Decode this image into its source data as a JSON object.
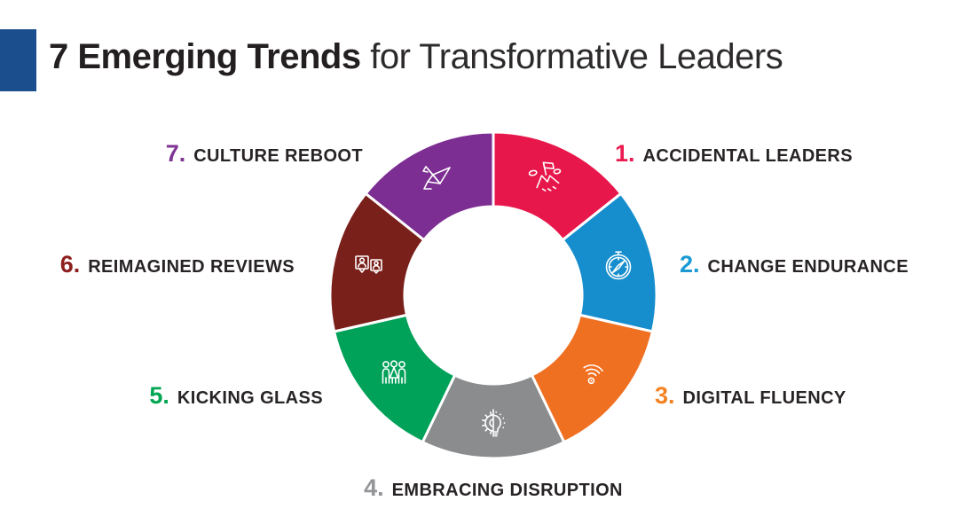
{
  "header": {
    "title_bold": "7 Emerging Trends",
    "title_light": " for Transformative Leaders",
    "accent_color": "#1b4e8c",
    "title_color": "#231f20"
  },
  "wheel": {
    "type": "donut",
    "equal_segments": true,
    "segment_count": 7,
    "center_empty": true,
    "segments": [
      {
        "number": "1.",
        "label": "ACCIDENTAL LEADERS",
        "color": "#e8174b",
        "number_color": "#ed1a4f",
        "icon": "mountain-flag-icon"
      },
      {
        "number": "2.",
        "label": "CHANGE ENDURANCE",
        "color": "#168ecd",
        "number_color": "#1b9ad5",
        "icon": "compass-icon"
      },
      {
        "number": "3.",
        "label": "DIGITAL FLUENCY",
        "color": "#f07022",
        "number_color": "#f58220",
        "icon": "wifi-icon"
      },
      {
        "number": "4.",
        "label": "EMBRACING DISRUPTION",
        "color": "#8a8c8e",
        "number_color": "#939598",
        "icon": "gear-lightbulb-icon"
      },
      {
        "number": "5.",
        "label": "KICKING GLASS",
        "color": "#00a159",
        "number_color": "#00a651",
        "icon": "people-group-icon"
      },
      {
        "number": "6.",
        "label": "REIMAGINED REVIEWS",
        "color": "#7a201a",
        "number_color": "#8e1f1f",
        "icon": "review-bubbles-icon"
      },
      {
        "number": "7.",
        "label": "CULTURE REBOOT",
        "color": "#7c2e92",
        "number_color": "#7f3494",
        "icon": "origami-crane-icon"
      }
    ]
  }
}
